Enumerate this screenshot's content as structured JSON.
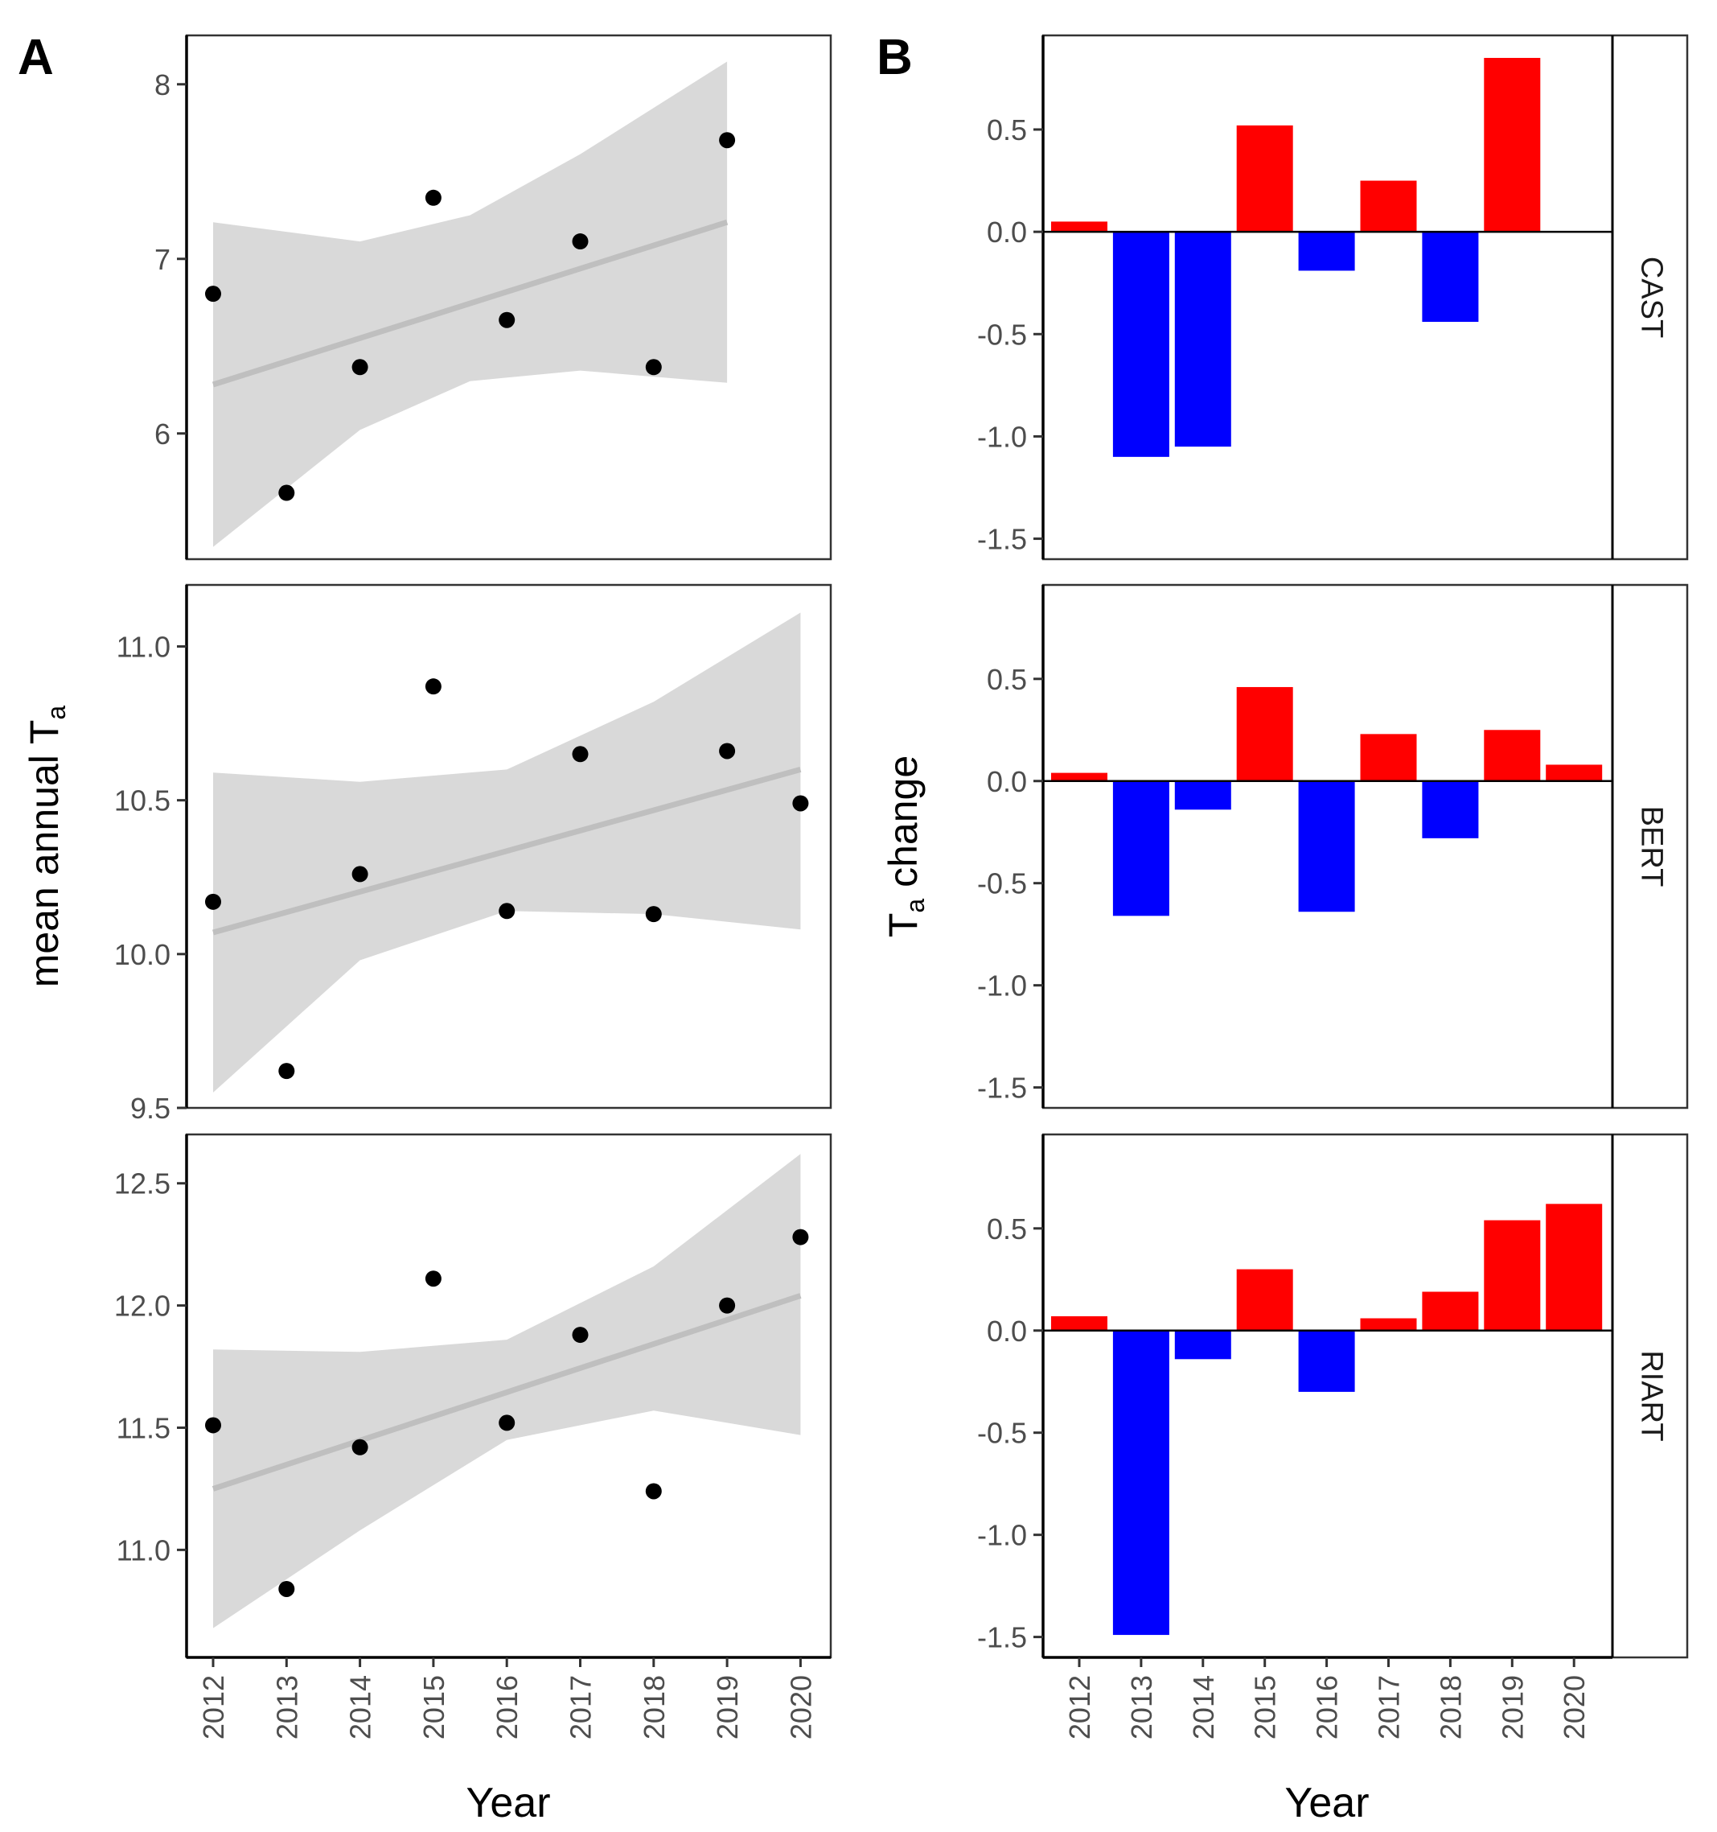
{
  "figure": {
    "panel_a_label": "A",
    "panel_b_label": "B"
  },
  "chart_data": [
    {
      "type": "scatter",
      "panel": "A",
      "site": "CAST",
      "xlabel": "Year",
      "ylabel_main": "mean annual T",
      "ylabel_sub": "a",
      "x": [
        2012,
        2013,
        2014,
        2015,
        2016,
        2017,
        2018,
        2019
      ],
      "y": [
        6.8,
        5.66,
        6.38,
        7.35,
        6.65,
        7.1,
        6.38,
        7.68
      ],
      "fit": {
        "x": [
          2012,
          2019
        ],
        "y": [
          6.28,
          7.21
        ]
      },
      "ci": {
        "x": [
          2012,
          2014,
          2015.5,
          2017,
          2019
        ],
        "lower": [
          5.35,
          6.02,
          6.3,
          6.36,
          6.29
        ],
        "upper": [
          7.21,
          7.1,
          7.25,
          7.6,
          8.13
        ]
      },
      "ylim": [
        5.28,
        8.28
      ],
      "yticks": [
        "6",
        "7",
        "8"
      ],
      "ytick_values": [
        6,
        7,
        8
      ]
    },
    {
      "type": "scatter",
      "panel": "A",
      "site": "BERT",
      "x": [
        2012,
        2013,
        2014,
        2015,
        2016,
        2017,
        2018,
        2019,
        2020
      ],
      "y": [
        10.17,
        9.62,
        10.26,
        10.87,
        10.14,
        10.65,
        10.13,
        10.66,
        10.49
      ],
      "fit": {
        "x": [
          2012,
          2020
        ],
        "y": [
          10.07,
          10.6
        ]
      },
      "ci": {
        "x": [
          2012,
          2014,
          2016,
          2018,
          2020
        ],
        "lower": [
          9.55,
          9.98,
          10.14,
          10.13,
          10.08
        ],
        "upper": [
          10.59,
          10.56,
          10.6,
          10.82,
          11.11
        ]
      },
      "ylim": [
        9.5,
        11.2
      ],
      "yticks": [
        "9.5",
        "10.0",
        "10.5",
        "11.0"
      ],
      "ytick_values": [
        9.5,
        10.0,
        10.5,
        11.0
      ]
    },
    {
      "type": "scatter",
      "panel": "A",
      "site": "RIART",
      "x": [
        2012,
        2013,
        2014,
        2015,
        2016,
        2017,
        2018,
        2019,
        2020
      ],
      "y": [
        11.51,
        10.84,
        11.42,
        12.11,
        11.52,
        11.88,
        11.24,
        12.0,
        12.28
      ],
      "fit": {
        "x": [
          2012,
          2020
        ],
        "y": [
          11.25,
          12.04
        ]
      },
      "ci": {
        "x": [
          2012,
          2014,
          2016,
          2018,
          2020
        ],
        "lower": [
          10.68,
          11.08,
          11.45,
          11.57,
          11.47
        ],
        "upper": [
          11.82,
          11.81,
          11.86,
          12.16,
          12.62
        ]
      },
      "ylim": [
        10.56,
        12.7
      ],
      "yticks": [
        "11.0",
        "11.5",
        "12.0",
        "12.5"
      ],
      "ytick_values": [
        11.0,
        11.5,
        12.0,
        12.5
      ],
      "xticks": [
        "2012",
        "2013",
        "2014",
        "2015",
        "2016",
        "2017",
        "2018",
        "2019",
        "2020"
      ]
    },
    {
      "type": "bar",
      "panel": "B",
      "site": "CAST",
      "xlabel": "Year",
      "ylabel_main": "T",
      "ylabel_sub": "a",
      "ylabel_rest": " change",
      "categories": [
        "2012",
        "2013",
        "2014",
        "2015",
        "2016",
        "2017",
        "2018",
        "2019",
        "2020"
      ],
      "values": [
        0.05,
        -1.1,
        -1.05,
        0.52,
        -0.19,
        0.25,
        -0.44,
        0.85,
        null
      ],
      "positive_color": "#ff0000",
      "negative_color": "#0000ff",
      "ylim": [
        -1.6,
        0.96
      ],
      "yticks": [
        "0.5",
        "0.0",
        "-0.5",
        "-1.0",
        "-1.5"
      ],
      "ytick_values": [
        0.5,
        0.0,
        -0.5,
        -1.0,
        -1.5
      ]
    },
    {
      "type": "bar",
      "panel": "B",
      "site": "BERT",
      "categories": [
        "2012",
        "2013",
        "2014",
        "2015",
        "2016",
        "2017",
        "2018",
        "2019",
        "2020"
      ],
      "values": [
        0.04,
        -0.66,
        -0.14,
        0.46,
        -0.64,
        0.23,
        -0.28,
        0.25,
        0.08
      ],
      "positive_color": "#ff0000",
      "negative_color": "#0000ff",
      "ylim": [
        -1.6,
        0.96
      ],
      "yticks": [
        "0.5",
        "0.0",
        "-0.5",
        "-1.0",
        "-1.5"
      ],
      "ytick_values": [
        0.5,
        0.0,
        -0.5,
        -1.0,
        -1.5
      ]
    },
    {
      "type": "bar",
      "panel": "B",
      "site": "RIART",
      "categories": [
        "2012",
        "2013",
        "2014",
        "2015",
        "2016",
        "2017",
        "2018",
        "2019",
        "2020"
      ],
      "values": [
        0.07,
        -1.49,
        -0.14,
        0.3,
        -0.3,
        0.06,
        0.19,
        0.54,
        0.62
      ],
      "positive_color": "#ff0000",
      "negative_color": "#0000ff",
      "ylim": [
        -1.6,
        0.96
      ],
      "yticks": [
        "0.5",
        "0.0",
        "-0.5",
        "-1.0",
        "-1.5"
      ],
      "ytick_values": [
        0.5,
        0.0,
        -0.5,
        -1.0,
        -1.5
      ],
      "xticks": [
        "2012",
        "2013",
        "2014",
        "2015",
        "2016",
        "2017",
        "2018",
        "2019",
        "2020"
      ]
    }
  ]
}
